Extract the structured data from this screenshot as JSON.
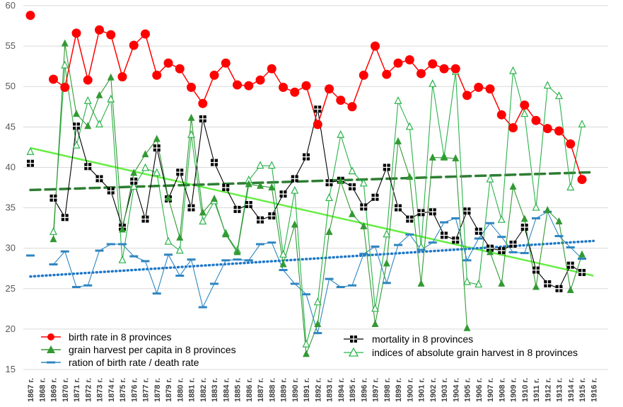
{
  "chart_data": {
    "type": "line",
    "x": [
      "1867 г.",
      "1868 г.",
      "1869 г.",
      "1870 г.",
      "1871 г.",
      "1872 г.",
      "1873 г.",
      "1874 г.",
      "1875 г.",
      "1876 г.",
      "1877 г.",
      "1878 г.",
      "1879 г.",
      "1880 г.",
      "1881 г.",
      "1882 г.",
      "1883 г.",
      "1884 г.",
      "1885 г.",
      "1886 г.",
      "1887 г.",
      "1888 г.",
      "1889 г.",
      "1890 г.",
      "1891 г.",
      "1892 г.",
      "1893 г.",
      "1894 г.",
      "1895 г.",
      "1896 г.",
      "1897 г.",
      "1898 г.",
      "1899 г.",
      "1900 г.",
      "1901 г.",
      "1902 г.",
      "1903 г.",
      "1904 г.",
      "1905 г.",
      "1906 г.",
      "1907 г.",
      "1908 г.",
      "1909 г.",
      "1910 г.",
      "1911 г.",
      "1912 г.",
      "1913 г.",
      "1914 г.",
      "1915 г.",
      "1916 г."
    ],
    "ylim": [
      15,
      60
    ],
    "yticks": [
      15,
      20,
      25,
      30,
      35,
      40,
      45,
      50,
      55,
      60
    ],
    "grid": true,
    "series": [
      {
        "name": "birth rate in 8 provinces",
        "color": "#ff0000",
        "marker": "circle",
        "values": [
          58.8,
          null,
          50.9,
          49.9,
          56.6,
          50.8,
          57.0,
          56.4,
          51.2,
          55.1,
          56.5,
          51.4,
          52.9,
          52.2,
          49.9,
          47.9,
          51.4,
          52.9,
          50.2,
          50.1,
          50.8,
          52.2,
          49.9,
          49.3,
          50.1,
          45.3,
          49.7,
          48.3,
          47.5,
          51.4,
          55.0,
          51.5,
          52.9,
          53.3,
          51.6,
          52.8,
          52.2,
          52.2,
          48.9,
          49.9,
          49.7,
          46.5,
          44.9,
          47.7,
          45.8,
          44.8,
          44.5,
          42.9,
          38.5,
          null
        ]
      },
      {
        "name": "grain harvest per capita in 8 provinces",
        "color": "#339933",
        "marker": "triangle",
        "values": [
          null,
          null,
          31.1,
          55.3,
          46.6,
          45.1,
          48.9,
          51.1,
          32.3,
          39.3,
          41.6,
          43.5,
          36.2,
          31.3,
          46.1,
          34.4,
          36.1,
          31.7,
          29.5,
          37.9,
          37.7,
          37.5,
          28.0,
          32.9,
          16.9,
          20.6,
          32.0,
          38.3,
          34.2,
          32.7,
          20.6,
          28.1,
          43.2,
          38.8,
          25.6,
          41.2,
          41.2,
          41.1,
          20.1,
          null,
          29.5,
          25.6,
          37.6,
          33.6,
          25.2,
          34.7,
          33.3,
          24.8,
          29.2,
          null
        ]
      },
      {
        "name": "ration of birth rate / death rate",
        "color": "#2e86c1",
        "marker": "dash",
        "values": [
          29.1,
          null,
          28.0,
          29.6,
          25.2,
          25.4,
          29.7,
          30.5,
          30.5,
          29.0,
          28.4,
          24.4,
          29.2,
          26.6,
          28.6,
          22.7,
          25.6,
          28.5,
          28.6,
          28.5,
          30.5,
          30.7,
          27.3,
          25.6,
          24.3,
          19.5,
          26.2,
          25.2,
          25.4,
          29.3,
          30.2,
          25.7,
          30.4,
          31.7,
          29.8,
          30.7,
          33.2,
          33.7,
          28.5,
          31.2,
          33.1,
          31.4,
          29.5,
          29.4,
          33.7,
          34.5,
          31.5,
          30.1,
          28.7,
          null
        ]
      },
      {
        "name": "mortality in 8 provinces",
        "color": "#000000",
        "marker": "square",
        "values": [
          40.5,
          null,
          36.2,
          33.8,
          45.1,
          40.1,
          38.6,
          37.1,
          32.6,
          38.3,
          33.6,
          42.4,
          36.1,
          39.4,
          35.0,
          46.0,
          40.6,
          37.5,
          34.8,
          35.4,
          33.5,
          34.0,
          36.7,
          38.6,
          41.3,
          47.2,
          38.1,
          38.4,
          37.6,
          35.1,
          36.3,
          40.0,
          35.0,
          33.6,
          34.4,
          34.5,
          31.6,
          31.0,
          34.6,
          32.1,
          30.0,
          29.7,
          30.5,
          32.6,
          27.3,
          25.6,
          25.0,
          27.9,
          27.0,
          null
        ]
      },
      {
        "name": "indices of absolute grain harvest in 8 provinces",
        "color": "#29b34a",
        "marker": "triangle-open",
        "values": [
          41.9,
          null,
          32.0,
          52.6,
          42.7,
          48.2,
          45.3,
          48.4,
          28.5,
          37.6,
          39.9,
          39.3,
          30.8,
          29.7,
          44.0,
          33.3,
          35.8,
          31.8,
          29.7,
          38.4,
          40.2,
          40.2,
          29.2,
          37.1,
          18.1,
          23.3,
          36.2,
          44.0,
          39.5,
          38.0,
          22.5,
          31.7,
          48.2,
          45.0,
          30.1,
          50.3,
          41.3,
          51.8,
          25.8,
          25.5,
          38.5,
          33.5,
          51.9,
          46.6,
          35.0,
          50.1,
          48.8,
          37.5,
          45.3,
          null
        ]
      }
    ],
    "trendlines": [
      {
        "of": "mortality in 8 provinces",
        "style": "solid",
        "color": "#66ee44",
        "values": [
          42.4,
          26.6
        ]
      },
      {
        "of": "grain harvest per capita in 8 provinces",
        "style": "dashed",
        "color": "#2e7d32",
        "values": [
          37.2,
          39.4
        ]
      },
      {
        "of": "ration of birth rate / death rate",
        "style": "dotted",
        "color": "#1f78c8",
        "values": [
          26.5,
          30.9
        ]
      }
    ]
  },
  "legend_left": [
    "birth rate in 8 provinces",
    "grain harvest per capita in 8 provinces",
    "ration of birth rate / death rate"
  ],
  "legend_right": [
    "mortality in 8 provinces",
    "indices of absolute grain harvest in 8 provinces"
  ]
}
